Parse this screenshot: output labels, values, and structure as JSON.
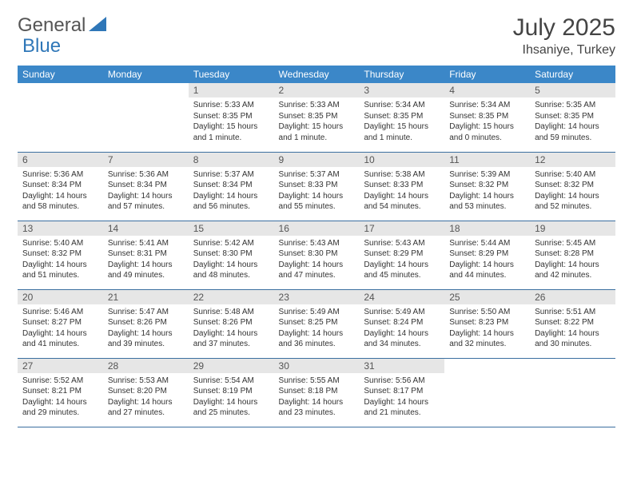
{
  "brand": {
    "part1": "General",
    "part2": "Blue"
  },
  "title": {
    "month": "July 2025",
    "location": "Ihsaniye, Turkey"
  },
  "colors": {
    "header_bg": "#3b87c8",
    "header_text": "#ffffff",
    "daynum_bg": "#e6e6e6",
    "row_border": "#3b6fa0",
    "logo_accent": "#2f77b8"
  },
  "weekdays": [
    "Sunday",
    "Monday",
    "Tuesday",
    "Wednesday",
    "Thursday",
    "Friday",
    "Saturday"
  ],
  "weeks": [
    [
      null,
      null,
      {
        "n": "1",
        "sr": "5:33 AM",
        "ss": "8:35 PM",
        "dl": "15 hours and 1 minute."
      },
      {
        "n": "2",
        "sr": "5:33 AM",
        "ss": "8:35 PM",
        "dl": "15 hours and 1 minute."
      },
      {
        "n": "3",
        "sr": "5:34 AM",
        "ss": "8:35 PM",
        "dl": "15 hours and 1 minute."
      },
      {
        "n": "4",
        "sr": "5:34 AM",
        "ss": "8:35 PM",
        "dl": "15 hours and 0 minutes."
      },
      {
        "n": "5",
        "sr": "5:35 AM",
        "ss": "8:35 PM",
        "dl": "14 hours and 59 minutes."
      }
    ],
    [
      {
        "n": "6",
        "sr": "5:36 AM",
        "ss": "8:34 PM",
        "dl": "14 hours and 58 minutes."
      },
      {
        "n": "7",
        "sr": "5:36 AM",
        "ss": "8:34 PM",
        "dl": "14 hours and 57 minutes."
      },
      {
        "n": "8",
        "sr": "5:37 AM",
        "ss": "8:34 PM",
        "dl": "14 hours and 56 minutes."
      },
      {
        "n": "9",
        "sr": "5:37 AM",
        "ss": "8:33 PM",
        "dl": "14 hours and 55 minutes."
      },
      {
        "n": "10",
        "sr": "5:38 AM",
        "ss": "8:33 PM",
        "dl": "14 hours and 54 minutes."
      },
      {
        "n": "11",
        "sr": "5:39 AM",
        "ss": "8:32 PM",
        "dl": "14 hours and 53 minutes."
      },
      {
        "n": "12",
        "sr": "5:40 AM",
        "ss": "8:32 PM",
        "dl": "14 hours and 52 minutes."
      }
    ],
    [
      {
        "n": "13",
        "sr": "5:40 AM",
        "ss": "8:32 PM",
        "dl": "14 hours and 51 minutes."
      },
      {
        "n": "14",
        "sr": "5:41 AM",
        "ss": "8:31 PM",
        "dl": "14 hours and 49 minutes."
      },
      {
        "n": "15",
        "sr": "5:42 AM",
        "ss": "8:30 PM",
        "dl": "14 hours and 48 minutes."
      },
      {
        "n": "16",
        "sr": "5:43 AM",
        "ss": "8:30 PM",
        "dl": "14 hours and 47 minutes."
      },
      {
        "n": "17",
        "sr": "5:43 AM",
        "ss": "8:29 PM",
        "dl": "14 hours and 45 minutes."
      },
      {
        "n": "18",
        "sr": "5:44 AM",
        "ss": "8:29 PM",
        "dl": "14 hours and 44 minutes."
      },
      {
        "n": "19",
        "sr": "5:45 AM",
        "ss": "8:28 PM",
        "dl": "14 hours and 42 minutes."
      }
    ],
    [
      {
        "n": "20",
        "sr": "5:46 AM",
        "ss": "8:27 PM",
        "dl": "14 hours and 41 minutes."
      },
      {
        "n": "21",
        "sr": "5:47 AM",
        "ss": "8:26 PM",
        "dl": "14 hours and 39 minutes."
      },
      {
        "n": "22",
        "sr": "5:48 AM",
        "ss": "8:26 PM",
        "dl": "14 hours and 37 minutes."
      },
      {
        "n": "23",
        "sr": "5:49 AM",
        "ss": "8:25 PM",
        "dl": "14 hours and 36 minutes."
      },
      {
        "n": "24",
        "sr": "5:49 AM",
        "ss": "8:24 PM",
        "dl": "14 hours and 34 minutes."
      },
      {
        "n": "25",
        "sr": "5:50 AM",
        "ss": "8:23 PM",
        "dl": "14 hours and 32 minutes."
      },
      {
        "n": "26",
        "sr": "5:51 AM",
        "ss": "8:22 PM",
        "dl": "14 hours and 30 minutes."
      }
    ],
    [
      {
        "n": "27",
        "sr": "5:52 AM",
        "ss": "8:21 PM",
        "dl": "14 hours and 29 minutes."
      },
      {
        "n": "28",
        "sr": "5:53 AM",
        "ss": "8:20 PM",
        "dl": "14 hours and 27 minutes."
      },
      {
        "n": "29",
        "sr": "5:54 AM",
        "ss": "8:19 PM",
        "dl": "14 hours and 25 minutes."
      },
      {
        "n": "30",
        "sr": "5:55 AM",
        "ss": "8:18 PM",
        "dl": "14 hours and 23 minutes."
      },
      {
        "n": "31",
        "sr": "5:56 AM",
        "ss": "8:17 PM",
        "dl": "14 hours and 21 minutes."
      },
      null,
      null
    ]
  ],
  "labels": {
    "sunrise": "Sunrise:",
    "sunset": "Sunset:",
    "daylight": "Daylight:"
  }
}
